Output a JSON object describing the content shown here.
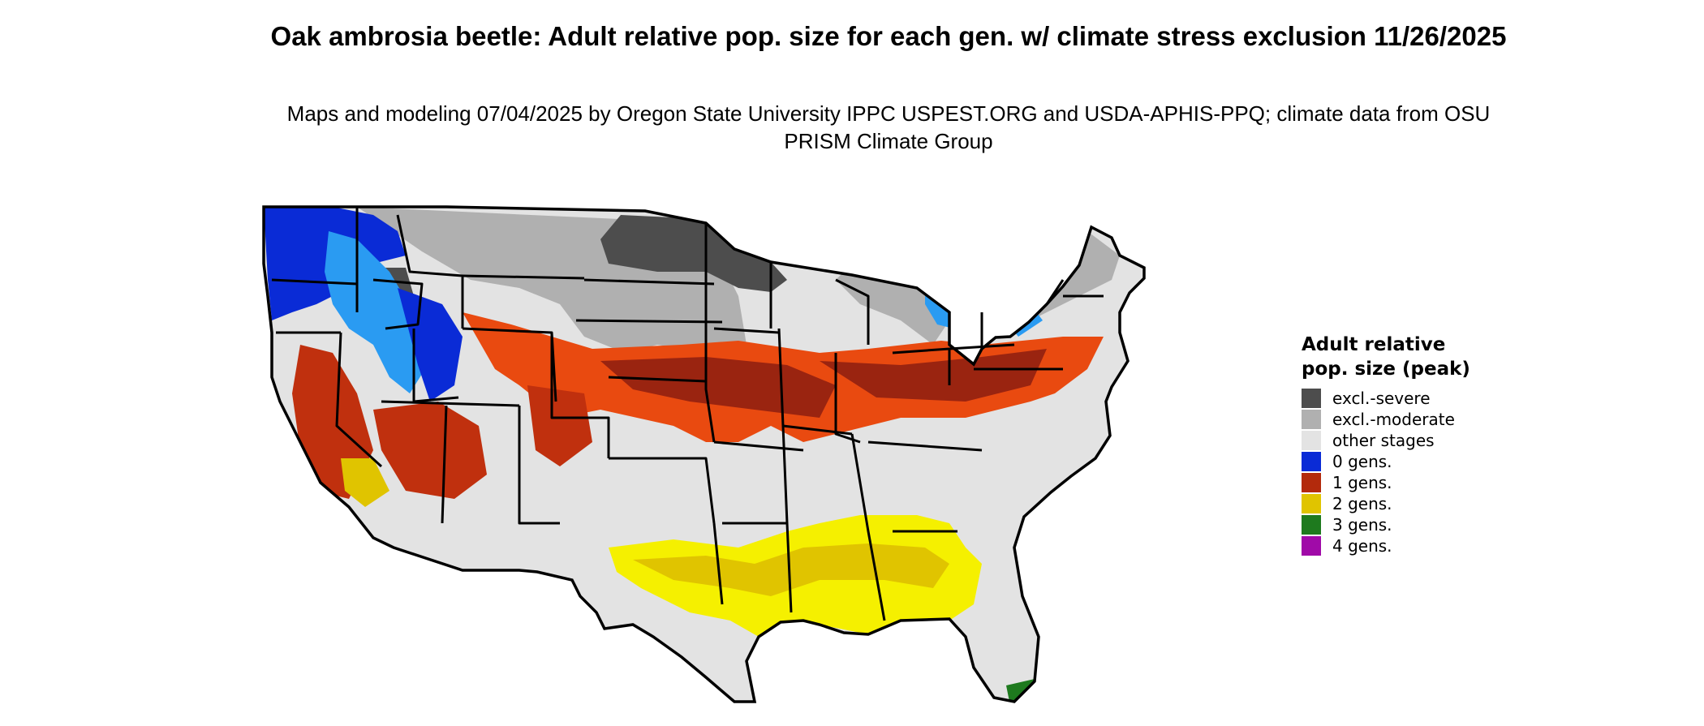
{
  "title": "Oak ambrosia beetle: Adult relative pop. size for each gen. w/ climate stress exclusion 11/26/2025",
  "subtitle": "Maps and modeling 07/04/2025 by Oregon State University IPPC USPEST.ORG and USDA-APHIS-PPQ; climate data from OSU PRISM Climate Group",
  "legend": {
    "title": "Adult relative pop. size (peak)",
    "items": [
      {
        "label": "excl.-severe",
        "color": "#4d4d4d"
      },
      {
        "label": "excl.-moderate",
        "color": "#b0b0b0"
      },
      {
        "label": "other stages",
        "color": "#e3e3e3"
      },
      {
        "label": "0 gens.",
        "color": "#0a2bd6"
      },
      {
        "label": "1 gens.",
        "color": "#b32a0c"
      },
      {
        "label": "2 gens.",
        "color": "#e0c400"
      },
      {
        "label": "3 gens.",
        "color": "#1e7a1e"
      },
      {
        "label": "4 gens.",
        "color": "#a00aa8"
      }
    ]
  },
  "map": {
    "region": "contiguous United States",
    "colors": {
      "severe": "#4d4d4d",
      "moderate": "#b0b0b0",
      "other": "#e3e3e3",
      "gen0": "#0a2bd6",
      "gen0_light": "#2a9bf2",
      "gen1": "#c0300e",
      "gen1_dark": "#9a2410",
      "gen1_bright": "#e94a10",
      "gen2": "#e0c400",
      "gen2_bright": "#f5f000",
      "gen3": "#1e7a1e",
      "border": "#000000"
    }
  }
}
